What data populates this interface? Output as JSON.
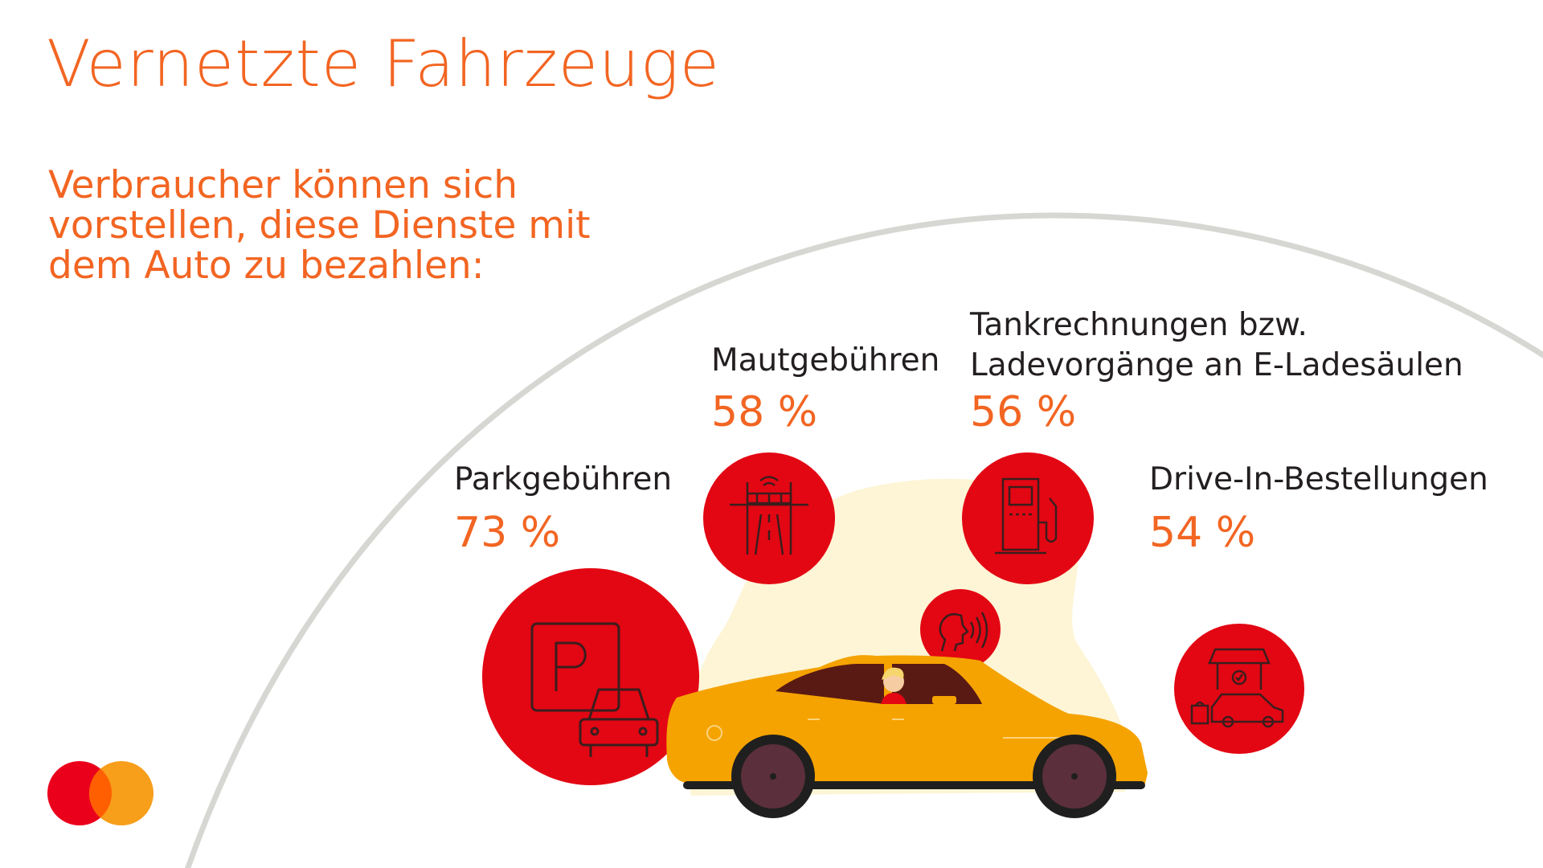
{
  "title": "Vernetzte Fahrzeuge",
  "subtitle_lines": [
    "Verbraucher können sich",
    "vorstellen, diese Dienste mit",
    "dem Auto zu bezahlen:"
  ],
  "services": {
    "parking": {
      "label": "Parkgebühren",
      "percent": "73 %",
      "icon": "parking-icon"
    },
    "toll": {
      "label": "Mautgebühren",
      "percent": "58 %",
      "icon": "toll-gate-icon"
    },
    "fuel": {
      "label_lines": [
        "Tankrechnungen bzw.",
        "Ladevorgänge an E-Ladesäulen"
      ],
      "percent": "56 %",
      "icon": "fuel-pump-icon"
    },
    "drive_in": {
      "label": "Drive-In-Bestellungen",
      "percent": "54 %",
      "icon": "drive-in-shop-icon"
    }
  },
  "voice_icon": "voice-command-icon",
  "logo": "mastercard-logo",
  "colors": {
    "accent": "#f26522",
    "circle_red": "#e30613",
    "logo_red": "#eb001b",
    "logo_orange": "#f79e1b",
    "car_yellow": "#f5a300",
    "arc_gray": "#d6d6d3"
  }
}
